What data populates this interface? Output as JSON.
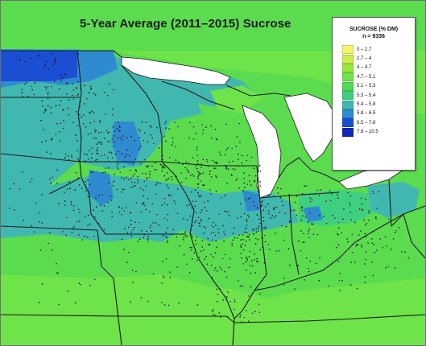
{
  "map": {
    "title": "5-Year Average (2011–2015) Sucrose",
    "legend": {
      "title": "SUCROSE (% DM)",
      "n_label": "n = 9336",
      "items": [
        {
          "label": "0 – 2.7",
          "color": "#f4f46a"
        },
        {
          "label": "2.7 – 4",
          "color": "#c9f04a"
        },
        {
          "label": "4 – 4.7",
          "color": "#9ae83a"
        },
        {
          "label": "4.7 – 5.1",
          "color": "#6ee34a"
        },
        {
          "label": "5.1 – 5.3",
          "color": "#4fdb56"
        },
        {
          "label": "5.3 – 5.4",
          "color": "#3fcf80"
        },
        {
          "label": "5.4 – 5.8",
          "color": "#40b8b0"
        },
        {
          "label": "5.8 – 6.5",
          "color": "#2f8bd0"
        },
        {
          "label": "6.5 – 7.8",
          "color": "#1a4fd4"
        },
        {
          "label": "7.8 – 10.5",
          "color": "#1326b8"
        }
      ]
    },
    "colors": {
      "water": "#ffffff",
      "border": "#1a1a1a",
      "sample_dot": "#111111"
    }
  }
}
